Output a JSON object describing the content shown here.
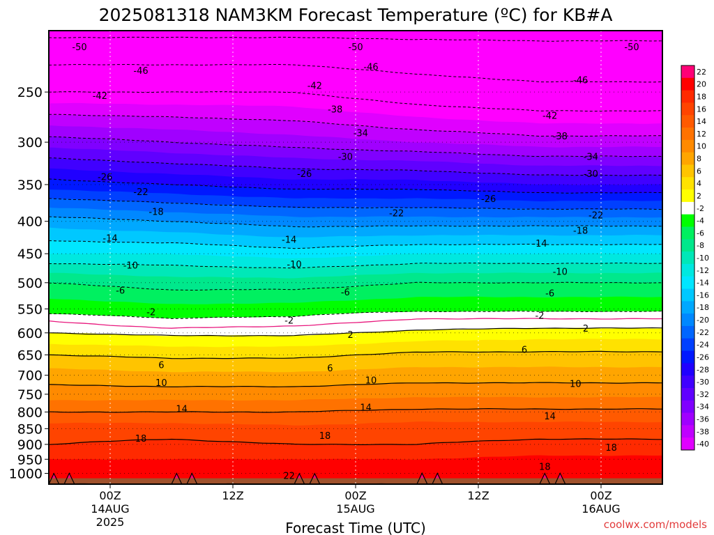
{
  "chart_data": {
    "type": "heatmap",
    "title": "2025081318 NAM3KM Forecast Temperature (ºC) for KB#A",
    "xlabel": "Forecast Time (UTC)",
    "ylabel": "",
    "x_start_hour": 18,
    "x_end_hour": 78,
    "x_ticks": [
      {
        "hour": 24,
        "lines": [
          "00Z",
          "14AUG",
          "2025"
        ]
      },
      {
        "hour": 36,
        "lines": [
          "12Z"
        ]
      },
      {
        "hour": 48,
        "lines": [
          "00Z",
          "15AUG"
        ]
      },
      {
        "hour": 60,
        "lines": [
          "12Z"
        ]
      },
      {
        "hour": 72,
        "lines": [
          "00Z",
          "16AUG"
        ]
      }
    ],
    "y_scale": "log-pressure",
    "ylim_hpa": [
      1040,
      200
    ],
    "y_ticks": [
      250,
      300,
      350,
      400,
      450,
      500,
      550,
      600,
      650,
      700,
      750,
      800,
      850,
      900,
      950,
      1000
    ],
    "ground_pressure_hpa": 1018,
    "colorbar_levels": [
      22,
      20,
      18,
      16,
      14,
      12,
      10,
      8,
      6,
      4,
      2,
      -2,
      -4,
      -6,
      -8,
      -10,
      -12,
      -14,
      -16,
      -18,
      -20,
      -22,
      -24,
      -26,
      -28,
      -30,
      -32,
      -34,
      -36,
      -38,
      -40
    ],
    "colors": {
      "ground": "#a0522d",
      "freezing_line": "#e8177d",
      "dashed_contour": "#000000",
      "solid_contour": "#000000"
    },
    "temperature_profiles": [
      {
        "hour": 18,
        "profile": [
          [
            1000,
            22
          ],
          [
            950,
            20
          ],
          [
            900,
            18
          ],
          [
            850,
            17
          ],
          [
            800,
            14
          ],
          [
            750,
            11
          ],
          [
            700,
            9
          ],
          [
            650,
            6
          ],
          [
            600,
            2
          ],
          [
            575,
            0
          ],
          [
            560,
            -2
          ],
          [
            500,
            -6
          ],
          [
            450,
            -12
          ],
          [
            400,
            -17
          ],
          [
            350,
            -25
          ],
          [
            300,
            -33
          ],
          [
            250,
            -42
          ],
          [
            200,
            -51
          ]
        ]
      },
      {
        "hour": 30,
        "profile": [
          [
            1000,
            22
          ],
          [
            950,
            20
          ],
          [
            900,
            18.5
          ],
          [
            850,
            17
          ],
          [
            800,
            14
          ],
          [
            750,
            11
          ],
          [
            700,
            8.5
          ],
          [
            650,
            5.5
          ],
          [
            600,
            1.5
          ],
          [
            590,
            0
          ],
          [
            570,
            -2
          ],
          [
            500,
            -7
          ],
          [
            450,
            -12
          ],
          [
            400,
            -18
          ],
          [
            350,
            -26
          ],
          [
            300,
            -34
          ],
          [
            250,
            -42
          ],
          [
            200,
            -51
          ]
        ]
      },
      {
        "hour": 42,
        "profile": [
          [
            1000,
            22
          ],
          [
            950,
            20
          ],
          [
            900,
            18
          ],
          [
            850,
            16.5
          ],
          [
            800,
            14
          ],
          [
            750,
            11
          ],
          [
            700,
            8.5
          ],
          [
            650,
            5.5
          ],
          [
            600,
            1.5
          ],
          [
            585,
            0
          ],
          [
            565,
            -2
          ],
          [
            500,
            -7
          ],
          [
            450,
            -13
          ],
          [
            400,
            -19
          ],
          [
            350,
            -27
          ],
          [
            300,
            -35
          ],
          [
            250,
            -42
          ],
          [
            200,
            -51
          ]
        ]
      },
      {
        "hour": 54,
        "profile": [
          [
            1000,
            22
          ],
          [
            950,
            20
          ],
          [
            900,
            18
          ],
          [
            850,
            17
          ],
          [
            800,
            14.5
          ],
          [
            750,
            11.5
          ],
          [
            700,
            9
          ],
          [
            650,
            6.5
          ],
          [
            600,
            2.5
          ],
          [
            570,
            0
          ],
          [
            555,
            -2
          ],
          [
            500,
            -6
          ],
          [
            450,
            -12
          ],
          [
            400,
            -19
          ],
          [
            350,
            -27
          ],
          [
            300,
            -36
          ],
          [
            250,
            -44
          ],
          [
            200,
            -51
          ]
        ]
      },
      {
        "hour": 66,
        "profile": [
          [
            1000,
            22
          ],
          [
            950,
            20.5
          ],
          [
            900,
            18.5
          ],
          [
            850,
            17
          ],
          [
            800,
            14.5
          ],
          [
            750,
            11.5
          ],
          [
            700,
            9
          ],
          [
            650,
            6.5
          ],
          [
            600,
            3
          ],
          [
            570,
            0
          ],
          [
            555,
            -2
          ],
          [
            500,
            -6
          ],
          [
            450,
            -12
          ],
          [
            400,
            -19
          ],
          [
            350,
            -28
          ],
          [
            300,
            -37
          ],
          [
            250,
            -45
          ],
          [
            200,
            -51
          ]
        ]
      },
      {
        "hour": 78,
        "profile": [
          [
            1000,
            22
          ],
          [
            950,
            20.5
          ],
          [
            900,
            18.5
          ],
          [
            850,
            17
          ],
          [
            800,
            14.5
          ],
          [
            750,
            11.5
          ],
          [
            700,
            9
          ],
          [
            650,
            6.5
          ],
          [
            600,
            3
          ],
          [
            570,
            0
          ],
          [
            555,
            -2
          ],
          [
            500,
            -6
          ],
          [
            450,
            -12
          ],
          [
            400,
            -19
          ],
          [
            350,
            -28
          ],
          [
            300,
            -37
          ],
          [
            250,
            -45
          ],
          [
            200,
            -51
          ]
        ]
      }
    ],
    "contour_labels": [
      {
        "hour": 21,
        "hpa": 212,
        "text": "-50"
      },
      {
        "hour": 48,
        "hpa": 212,
        "text": "-50"
      },
      {
        "hour": 75,
        "hpa": 212,
        "text": "-50"
      },
      {
        "hour": 27,
        "hpa": 231,
        "text": "-46"
      },
      {
        "hour": 49.5,
        "hpa": 228,
        "text": "-46"
      },
      {
        "hour": 70,
        "hpa": 239,
        "text": "-46"
      },
      {
        "hour": 23,
        "hpa": 253,
        "text": "-42"
      },
      {
        "hour": 44,
        "hpa": 244,
        "text": "-42"
      },
      {
        "hour": 67,
        "hpa": 272,
        "text": "-42"
      },
      {
        "hour": 46,
        "hpa": 266,
        "text": "-38"
      },
      {
        "hour": 68,
        "hpa": 293,
        "text": "-38"
      },
      {
        "hour": 48.5,
        "hpa": 290,
        "text": "-34"
      },
      {
        "hour": 71,
        "hpa": 316,
        "text": "-34"
      },
      {
        "hour": 47,
        "hpa": 316,
        "text": "-30"
      },
      {
        "hour": 71,
        "hpa": 336,
        "text": "-30"
      },
      {
        "hour": 23.5,
        "hpa": 340,
        "text": "-26"
      },
      {
        "hour": 43,
        "hpa": 336,
        "text": "-26"
      },
      {
        "hour": 61,
        "hpa": 368,
        "text": "-26"
      },
      {
        "hour": 27,
        "hpa": 359,
        "text": "-22"
      },
      {
        "hour": 52,
        "hpa": 388,
        "text": "-22"
      },
      {
        "hour": 71.5,
        "hpa": 391,
        "text": "-22"
      },
      {
        "hour": 28.5,
        "hpa": 386,
        "text": "-18"
      },
      {
        "hour": 70,
        "hpa": 413,
        "text": "-18"
      },
      {
        "hour": 24,
        "hpa": 425,
        "text": "-14"
      },
      {
        "hour": 41.5,
        "hpa": 427,
        "text": "-14"
      },
      {
        "hour": 66,
        "hpa": 433,
        "text": "-14"
      },
      {
        "hour": 26,
        "hpa": 469,
        "text": "-10"
      },
      {
        "hour": 42,
        "hpa": 467,
        "text": "-10"
      },
      {
        "hour": 68,
        "hpa": 480,
        "text": "-10"
      },
      {
        "hour": 25,
        "hpa": 514,
        "text": "-6"
      },
      {
        "hour": 47,
        "hpa": 517,
        "text": "-6"
      },
      {
        "hour": 67,
        "hpa": 519,
        "text": "-6"
      },
      {
        "hour": 28,
        "hpa": 556,
        "text": "-2"
      },
      {
        "hour": 41.5,
        "hpa": 573,
        "text": "-2"
      },
      {
        "hour": 66,
        "hpa": 563,
        "text": "-2"
      },
      {
        "hour": 47.5,
        "hpa": 603,
        "text": "2"
      },
      {
        "hour": 70.5,
        "hpa": 590,
        "text": "2"
      },
      {
        "hour": 29,
        "hpa": 674,
        "text": "6"
      },
      {
        "hour": 45.5,
        "hpa": 681,
        "text": "6"
      },
      {
        "hour": 64.5,
        "hpa": 637,
        "text": "6"
      },
      {
        "hour": 29,
        "hpa": 719,
        "text": "10"
      },
      {
        "hour": 49.5,
        "hpa": 712,
        "text": "10"
      },
      {
        "hour": 69.5,
        "hpa": 721,
        "text": "10"
      },
      {
        "hour": 31,
        "hpa": 790,
        "text": "14"
      },
      {
        "hour": 49,
        "hpa": 786,
        "text": "14"
      },
      {
        "hour": 67,
        "hpa": 811,
        "text": "14"
      },
      {
        "hour": 27,
        "hpa": 880,
        "text": "18"
      },
      {
        "hour": 45,
        "hpa": 871,
        "text": "18"
      },
      {
        "hour": 66.5,
        "hpa": 975,
        "text": "18"
      },
      {
        "hour": 73,
        "hpa": 909,
        "text": "18"
      },
      {
        "hour": 41.5,
        "hpa": 1007,
        "text": "22"
      }
    ]
  },
  "footer": {
    "credit": "coolwx.com/models"
  }
}
